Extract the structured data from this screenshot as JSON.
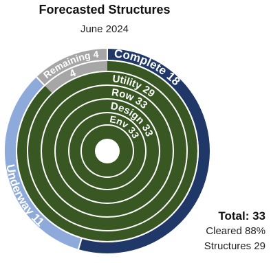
{
  "chart_data": {
    "type": "radial-bar",
    "title": "Forecasted Structures",
    "subtitle": "June 2024",
    "total_max": 33,
    "outer_ring": {
      "segments": [
        {
          "name": "Complete",
          "value": 18,
          "label": "Complete 18",
          "color": "#1f3868"
        },
        {
          "name": "Underway",
          "value": 11,
          "label": "Underway 11",
          "color": "#8eaadb"
        },
        {
          "name": "Remaining",
          "value": 4,
          "label": "Remaining 4",
          "color": "#a6a6a6"
        }
      ]
    },
    "inner_rings": [
      {
        "name": "Remaining",
        "value": 4,
        "label": "4",
        "color": "#a6a6a6"
      },
      {
        "name": "Utility",
        "value": 29,
        "label": "Utility 29",
        "color": "#385723"
      },
      {
        "name": "Row",
        "value": 33,
        "label": "Row 33",
        "color": "#385723"
      },
      {
        "name": "Design",
        "value": 33,
        "label": "Design 33",
        "color": "#385723"
      },
      {
        "name": "Env",
        "value": 33,
        "label": "Env 33",
        "color": "#385723"
      }
    ],
    "summary": {
      "total": "Total: 33",
      "cleared": "Cleared 88%",
      "structures": "Structures 29"
    }
  }
}
